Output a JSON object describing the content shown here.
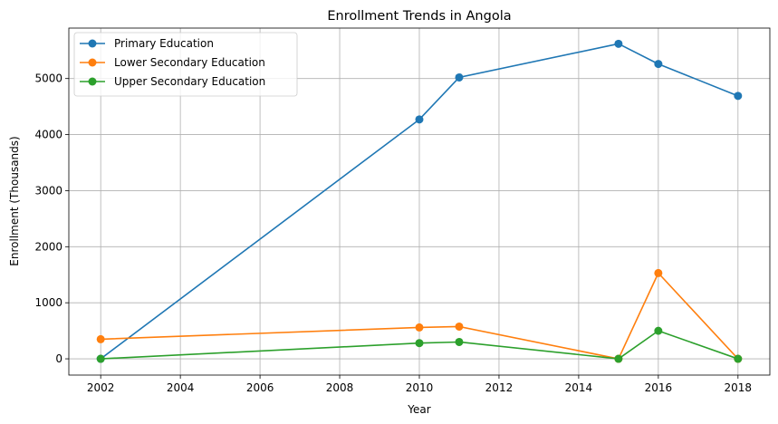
{
  "chart_data": {
    "type": "line",
    "title": "Enrollment Trends in Angola",
    "xlabel": "Year",
    "ylabel": "Enrollment (Thousands)",
    "x": [
      2002,
      2010,
      2011,
      2015,
      2016,
      2018
    ],
    "xlim": [
      2001.2,
      2018.8
    ],
    "ylim": [
      -290,
      5900
    ],
    "xticks": [
      2002,
      2004,
      2006,
      2008,
      2010,
      2012,
      2014,
      2016,
      2018
    ],
    "yticks": [
      0,
      1000,
      2000,
      3000,
      4000,
      5000
    ],
    "grid": true,
    "legend_position": "top-left",
    "series": [
      {
        "name": "Primary Education",
        "color": "#1f77b4",
        "values": [
          0,
          4270,
          5020,
          5620,
          5260,
          4690
        ]
      },
      {
        "name": "Lower Secondary Education",
        "color": "#ff7f0e",
        "values": [
          350,
          560,
          575,
          0,
          1530,
          0
        ]
      },
      {
        "name": "Upper Secondary Education",
        "color": "#2ca02c",
        "values": [
          0,
          280,
          300,
          0,
          500,
          0
        ]
      }
    ]
  }
}
